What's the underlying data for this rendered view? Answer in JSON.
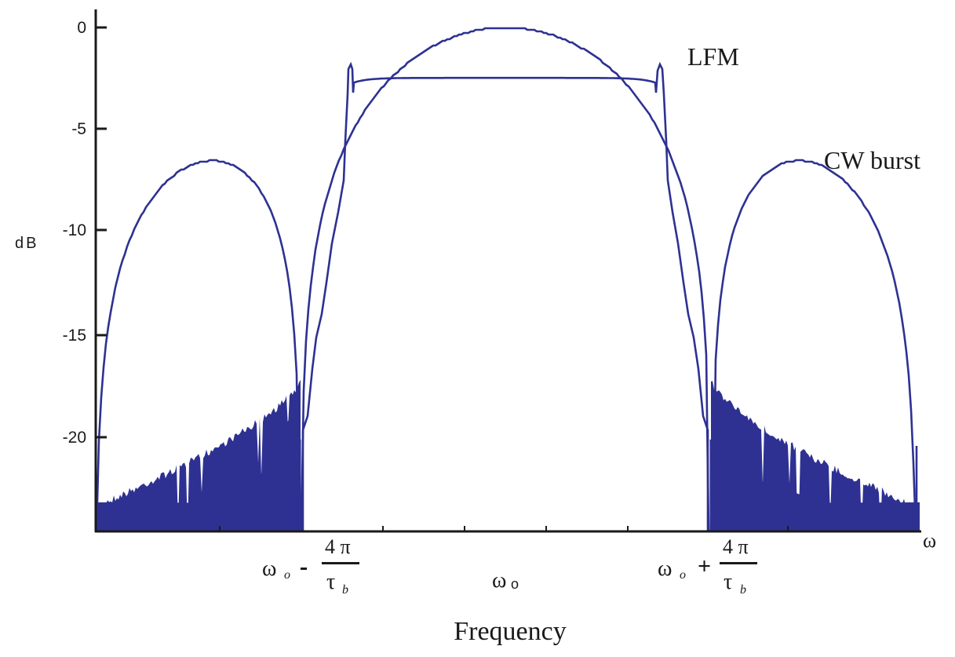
{
  "chart_data": {
    "type": "line",
    "title": "",
    "xlabel": "Frequency",
    "ylabel": "dB",
    "x_axis_end_label": "ω",
    "ylim": [
      -24.8,
      0.9
    ],
    "yticks": [
      0,
      -5,
      -10,
      -15,
      -20
    ],
    "ytick_labels": [
      "0",
      "-5",
      "-10",
      "-15",
      "-20"
    ],
    "x_tick_labels": [
      {
        "id": "left",
        "main": "ω",
        "sub": "o",
        "op": "-",
        "num": "4 π",
        "den": "τ",
        "den_sub": "b",
        "x_norm": -1.0
      },
      {
        "id": "center",
        "main": "ω",
        "sub": "o",
        "x_norm": 0.0
      },
      {
        "id": "right",
        "main": "ω",
        "sub": "o",
        "op": "+",
        "num": "4 π",
        "den": "τ",
        "den_sub": "b",
        "x_norm": 1.0
      }
    ],
    "x_domain": "normalized frequency offset (ω-ωo)/(4π/τb)",
    "xlim": [
      -2.0,
      2.0
    ],
    "grid": false,
    "legend": "inline annotations",
    "annotations": [
      {
        "text": "LFM",
        "near_series": "LFM"
      },
      {
        "text": "CW burst",
        "near_series": "CW burst"
      }
    ],
    "series": [
      {
        "name": "LFM",
        "description": "Nearly rectangular spectrum with Fresnel ripple at edges; noisy low-level tails",
        "x": [
          -2.0,
          -1.5,
          -1.1,
          -1.0,
          -0.95,
          -0.85,
          -0.78,
          -0.77,
          -0.5,
          0.0,
          0.5,
          0.77,
          0.78,
          0.85,
          0.95,
          1.0,
          1.1,
          1.5,
          2.0
        ],
        "values": [
          -23.5,
          -22.5,
          -19.5,
          -17.0,
          -13.0,
          -5.0,
          -1.9,
          -2.4,
          -2.4,
          -2.4,
          -2.4,
          -2.4,
          -1.9,
          -5.0,
          -13.0,
          -17.0,
          -19.5,
          -22.5,
          -23.5
        ]
      },
      {
        "name": "CW burst",
        "description": "sinc^2 shaped spectrum; main lobe between ±4π/τb, sidelobes peaking near -6.5 dB",
        "x": [
          -2.0,
          -1.9,
          -1.7,
          -1.5,
          -1.3,
          -1.1,
          -1.0,
          -0.9,
          -0.7,
          -0.5,
          -0.3,
          0.0,
          0.3,
          0.5,
          0.7,
          0.9,
          1.0,
          1.1,
          1.3,
          1.5,
          1.7,
          1.9,
          2.0
        ],
        "values": [
          -24.8,
          -15.0,
          -9.0,
          -6.5,
          -8.5,
          -15.5,
          -24.8,
          -16.0,
          -6.0,
          -2.5,
          -0.7,
          0.0,
          -0.7,
          -2.5,
          -6.0,
          -16.0,
          -24.8,
          -15.5,
          -8.5,
          -6.5,
          -9.0,
          -15.0,
          -24.8
        ]
      }
    ]
  },
  "colors": {
    "series": "#2e3192",
    "axis": "#1a1a1a",
    "background": "#ffffff"
  },
  "labels": {
    "ylabel": "dB",
    "xlabel": "Frequency",
    "x_end": "ω",
    "lfm": "LFM",
    "cw": "CW burst",
    "yt0": "0",
    "yt5": "-5",
    "yt10": "-10",
    "yt15": "-15",
    "yt20": "-20",
    "omega": "ω",
    "sub_o": "o",
    "minus": "-",
    "plus": "+",
    "four_pi": "4 π",
    "tau": "τ",
    "sub_b": "b"
  }
}
